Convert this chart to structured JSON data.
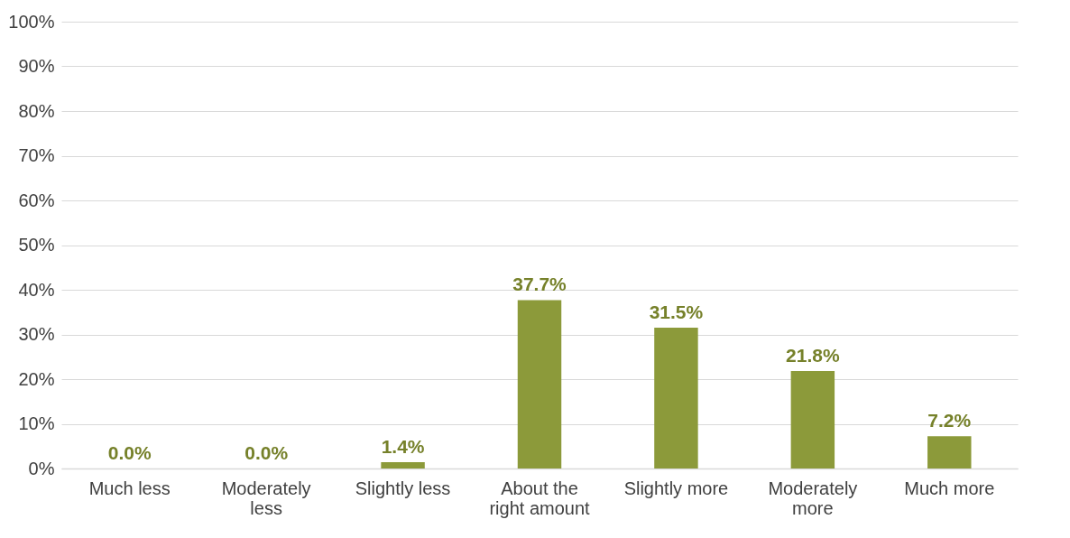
{
  "chart_data": {
    "type": "bar",
    "categories": [
      "Much less",
      "Moderately less",
      "Slightly less",
      "About the right amount",
      "Slightly more",
      "Moderately more",
      "Much more"
    ],
    "values": [
      0.0,
      0.0,
      1.4,
      37.7,
      31.5,
      21.8,
      7.2
    ],
    "value_labels": [
      "0.0%",
      "0.0%",
      "1.4%",
      "37.7%",
      "31.5%",
      "21.8%",
      "7.2%"
    ],
    "color": "#8c9a3a",
    "ylim": [
      0,
      100
    ],
    "yticks": [
      {
        "value": 0,
        "label": "0%"
      },
      {
        "value": 10,
        "label": "10%"
      },
      {
        "value": 20,
        "label": "20%"
      },
      {
        "value": 30,
        "label": "30%"
      },
      {
        "value": 40,
        "label": "40%"
      },
      {
        "value": 50,
        "label": "50%"
      },
      {
        "value": 60,
        "label": "60%"
      },
      {
        "value": 70,
        "label": "70%"
      },
      {
        "value": 80,
        "label": "80%"
      },
      {
        "value": 90,
        "label": "90%"
      },
      {
        "value": 100,
        "label": "100%"
      }
    ],
    "grid": "y"
  }
}
